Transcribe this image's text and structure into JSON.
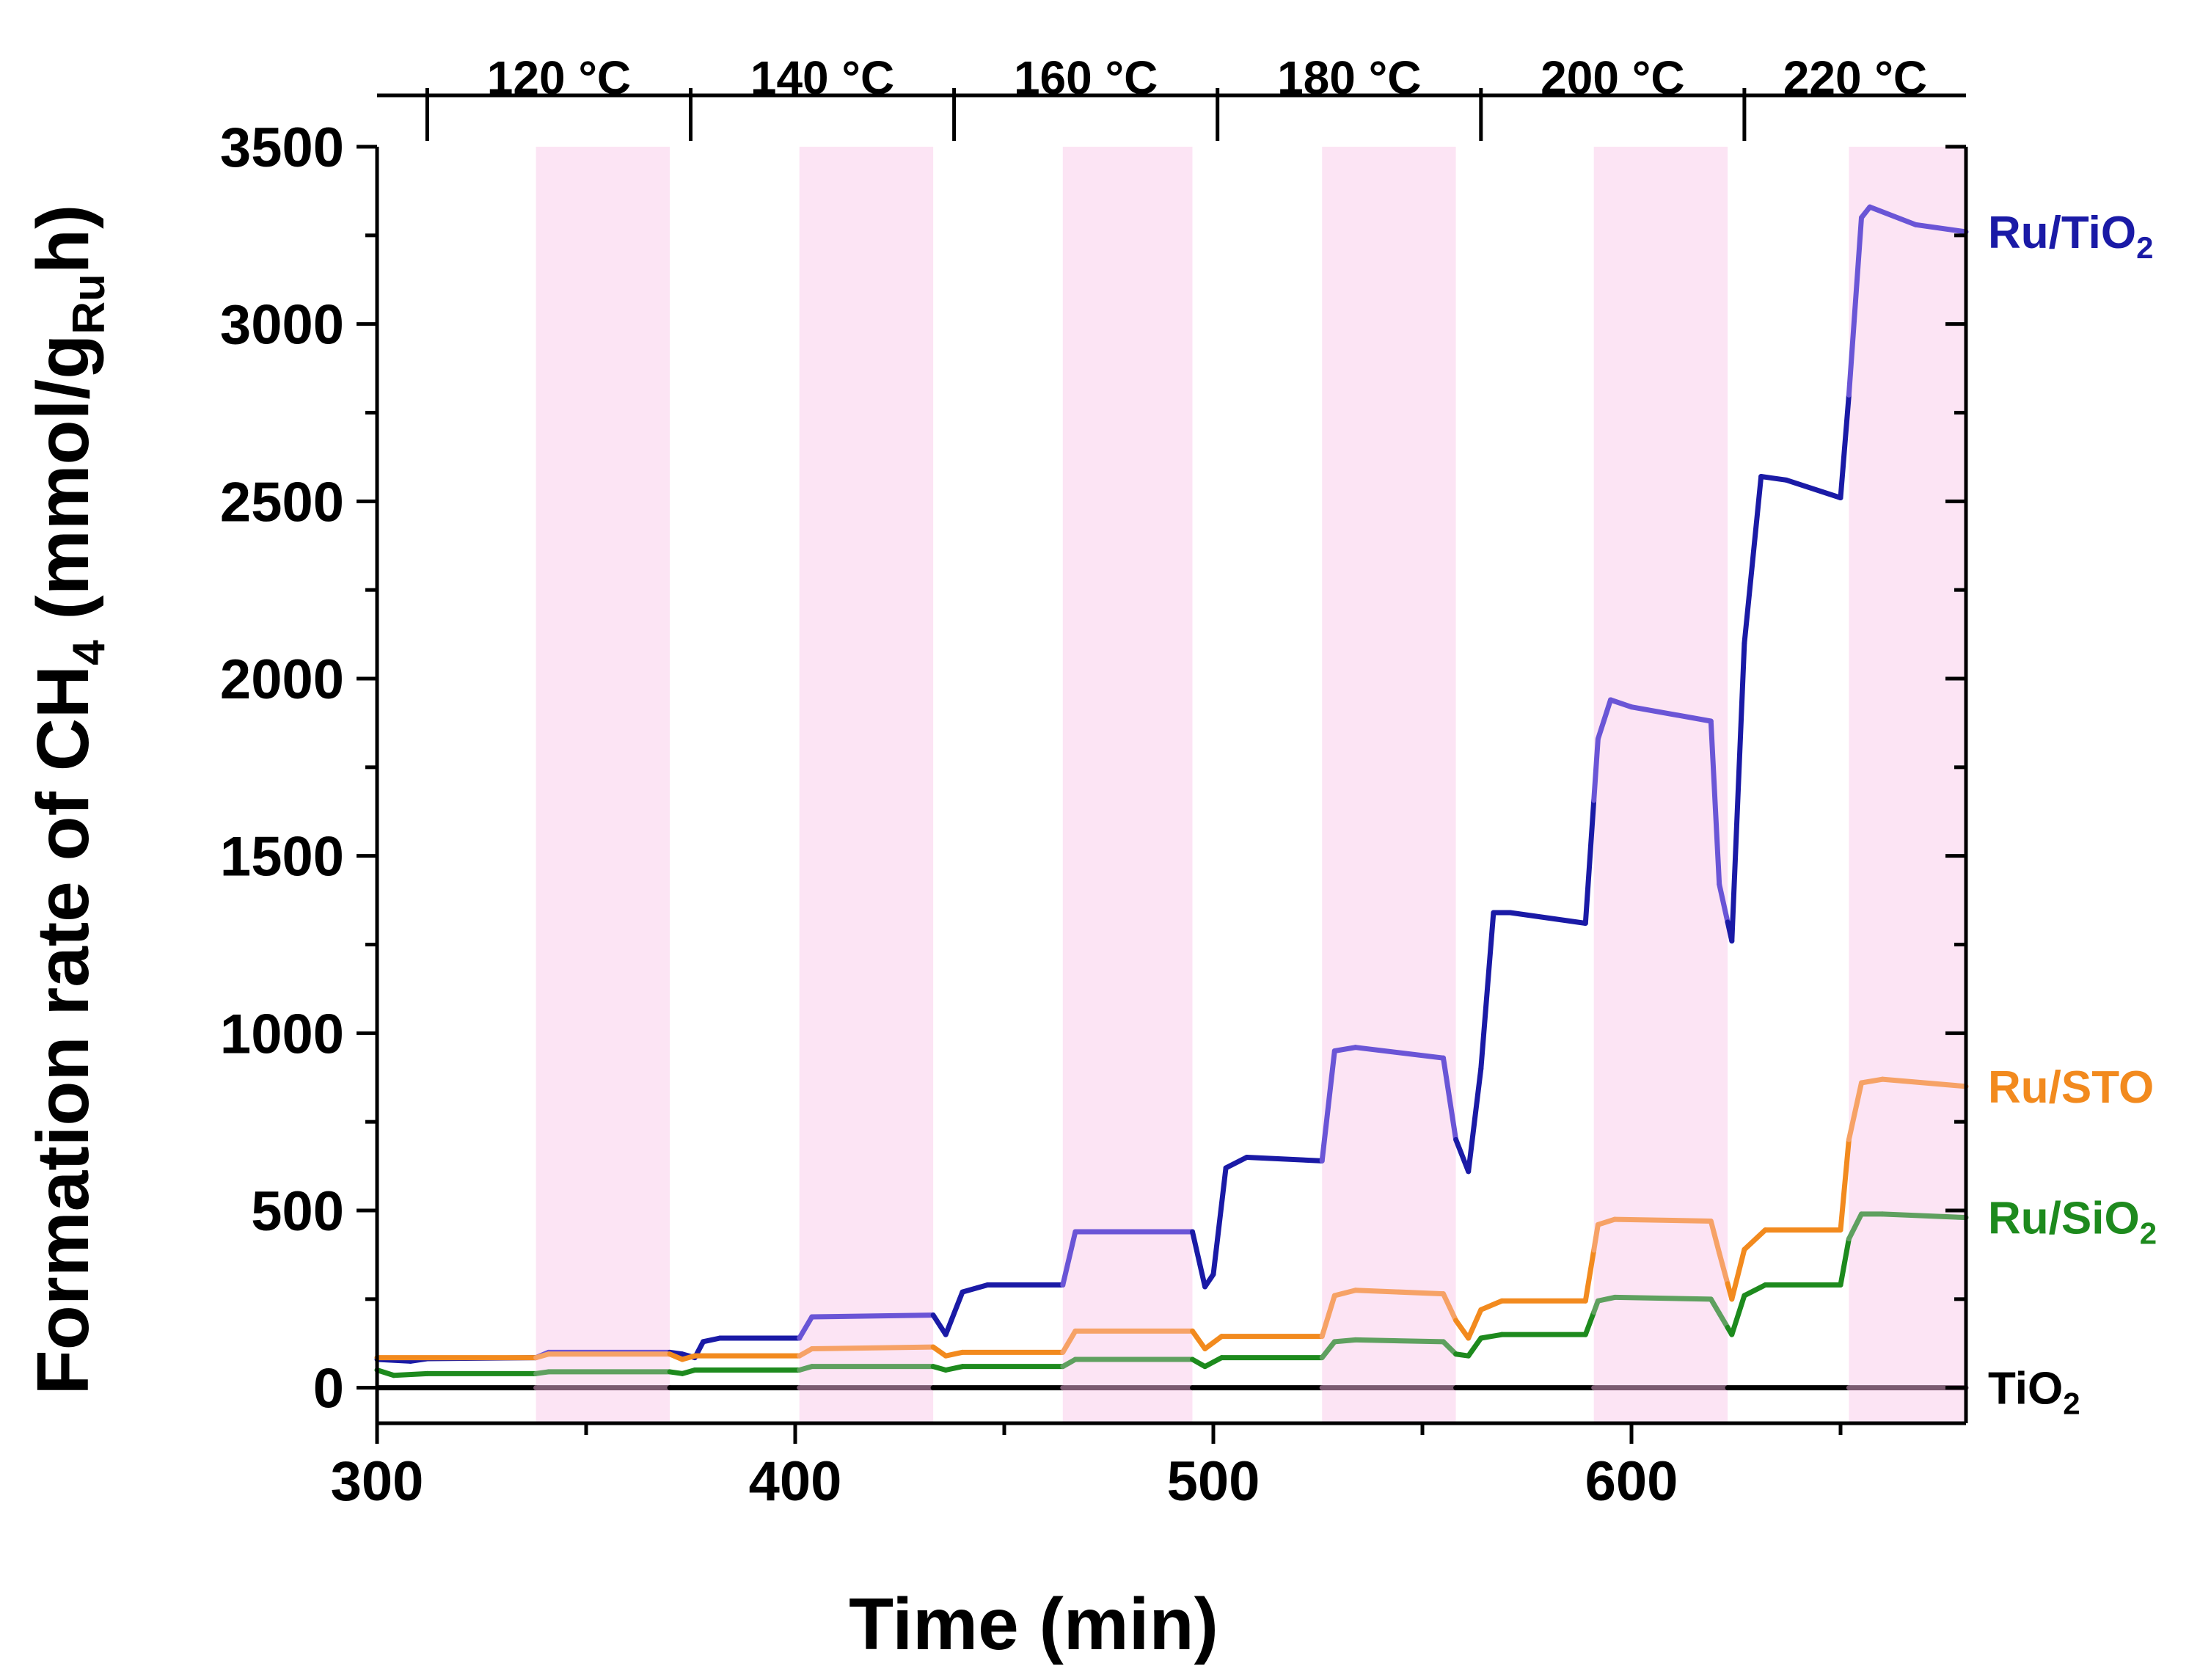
{
  "chart_data": {
    "type": "line",
    "title": "",
    "xlabel": "Time (min)",
    "ylabel": {
      "main": "Formation rate of CH",
      "sub1": "4",
      "mid": " (mmol/g",
      "sub2": "Ru",
      "end": "h)"
    },
    "xlim": [
      300,
      680
    ],
    "ylim": [
      -100,
      3500
    ],
    "xticks": [
      300,
      400,
      500,
      600
    ],
    "yticks": [
      0,
      500,
      1000,
      1500,
      2000,
      2500,
      3000,
      3500
    ],
    "xtick_labels": [
      "300",
      "400",
      "500",
      "600"
    ],
    "ytick_labels": [
      "0",
      "500",
      "1000",
      "1500",
      "2000",
      "2500",
      "3000",
      "3500"
    ],
    "light_on_bands": [
      [
        338,
        370
      ],
      [
        401,
        433
      ],
      [
        464,
        495
      ],
      [
        526,
        558
      ],
      [
        591,
        623
      ],
      [
        652,
        680
      ]
    ],
    "temperature_segments": [
      {
        "label": "120 °C",
        "start": 312,
        "end": 375
      },
      {
        "label": "140 °C",
        "start": 375,
        "end": 438
      },
      {
        "label": "160 °C",
        "start": 438,
        "end": 501
      },
      {
        "label": "180 °C",
        "start": 501,
        "end": 564
      },
      {
        "label": "200 °C",
        "start": 564,
        "end": 627
      },
      {
        "label": "220 °C",
        "start": 627,
        "end": 680
      }
    ],
    "series": [
      {
        "name": "Ru/TiO2",
        "label_main": "Ru/TiO",
        "label_sub": "2",
        "color": "#1a1aa6",
        "light_color": "#6a55d6",
        "points": [
          [
            300,
            80
          ],
          [
            308,
            75
          ],
          [
            312,
            82
          ],
          [
            338,
            85
          ],
          [
            341,
            100
          ],
          [
            370,
            100
          ],
          [
            373,
            95
          ],
          [
            376,
            85
          ],
          [
            378,
            130
          ],
          [
            382,
            140
          ],
          [
            401,
            140
          ],
          [
            404,
            200
          ],
          [
            433,
            205
          ],
          [
            436,
            150
          ],
          [
            440,
            270
          ],
          [
            446,
            290
          ],
          [
            464,
            290
          ],
          [
            467,
            440
          ],
          [
            495,
            440
          ],
          [
            498,
            285
          ],
          [
            500,
            320
          ],
          [
            503,
            620
          ],
          [
            508,
            650
          ],
          [
            526,
            640
          ],
          [
            529,
            950
          ],
          [
            534,
            960
          ],
          [
            555,
            930
          ],
          [
            558,
            700
          ],
          [
            561,
            610
          ],
          [
            564,
            900
          ],
          [
            567,
            1340
          ],
          [
            571,
            1340
          ],
          [
            589,
            1310
          ],
          [
            592,
            1830
          ],
          [
            595,
            1940
          ],
          [
            600,
            1920
          ],
          [
            619,
            1880
          ],
          [
            621,
            1420
          ],
          [
            624,
            1260
          ],
          [
            627,
            2100
          ],
          [
            631,
            2570
          ],
          [
            637,
            2560
          ],
          [
            650,
            2510
          ],
          [
            652,
            2800
          ],
          [
            655,
            3300
          ],
          [
            657,
            3330
          ],
          [
            668,
            3280
          ],
          [
            680,
            3260
          ]
        ]
      },
      {
        "name": "Ru/STO",
        "label_main": "Ru/STO",
        "label_sub": "",
        "color": "#f28a1e",
        "light_color": "#f6a266",
        "points": [
          [
            300,
            85
          ],
          [
            338,
            85
          ],
          [
            341,
            95
          ],
          [
            370,
            95
          ],
          [
            373,
            80
          ],
          [
            376,
            90
          ],
          [
            401,
            90
          ],
          [
            404,
            110
          ],
          [
            433,
            115
          ],
          [
            436,
            90
          ],
          [
            440,
            100
          ],
          [
            464,
            100
          ],
          [
            467,
            160
          ],
          [
            495,
            160
          ],
          [
            498,
            110
          ],
          [
            502,
            145
          ],
          [
            526,
            145
          ],
          [
            529,
            260
          ],
          [
            534,
            275
          ],
          [
            555,
            265
          ],
          [
            558,
            190
          ],
          [
            561,
            140
          ],
          [
            564,
            220
          ],
          [
            569,
            245
          ],
          [
            589,
            245
          ],
          [
            592,
            460
          ],
          [
            596,
            475
          ],
          [
            619,
            470
          ],
          [
            621,
            380
          ],
          [
            624,
            250
          ],
          [
            627,
            390
          ],
          [
            632,
            445
          ],
          [
            650,
            445
          ],
          [
            652,
            700
          ],
          [
            655,
            860
          ],
          [
            660,
            870
          ],
          [
            680,
            850
          ]
        ]
      },
      {
        "name": "Ru/SiO2",
        "label_main": "Ru/SiO",
        "label_sub": "2",
        "color": "#1d8a1d",
        "light_color": "#5fa05f",
        "points": [
          [
            300,
            50
          ],
          [
            304,
            35
          ],
          [
            312,
            40
          ],
          [
            338,
            40
          ],
          [
            341,
            45
          ],
          [
            370,
            45
          ],
          [
            373,
            40
          ],
          [
            376,
            50
          ],
          [
            401,
            50
          ],
          [
            404,
            60
          ],
          [
            433,
            60
          ],
          [
            436,
            50
          ],
          [
            440,
            60
          ],
          [
            464,
            60
          ],
          [
            467,
            80
          ],
          [
            495,
            80
          ],
          [
            498,
            60
          ],
          [
            502,
            85
          ],
          [
            526,
            85
          ],
          [
            529,
            130
          ],
          [
            534,
            135
          ],
          [
            555,
            130
          ],
          [
            558,
            95
          ],
          [
            561,
            90
          ],
          [
            564,
            140
          ],
          [
            569,
            150
          ],
          [
            589,
            150
          ],
          [
            592,
            245
          ],
          [
            596,
            255
          ],
          [
            619,
            250
          ],
          [
            621,
            210
          ],
          [
            624,
            150
          ],
          [
            627,
            260
          ],
          [
            632,
            290
          ],
          [
            650,
            290
          ],
          [
            652,
            420
          ],
          [
            655,
            490
          ],
          [
            660,
            490
          ],
          [
            680,
            480
          ]
        ]
      },
      {
        "name": "TiO2",
        "label_main": "TiO",
        "label_sub": "2",
        "color": "#000000",
        "light_color": "#7a5a70",
        "points": [
          [
            300,
            0
          ],
          [
            680,
            0
          ]
        ]
      }
    ]
  }
}
